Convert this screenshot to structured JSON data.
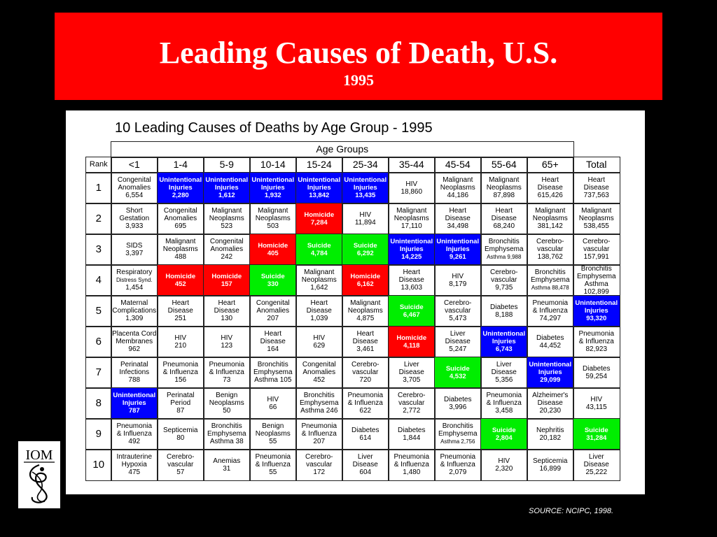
{
  "banner": {
    "title": "Leading Causes of Death, U.S.",
    "subtitle": "1995"
  },
  "table": {
    "title": "10 Leading Causes of Deaths by Age Group - 1995",
    "group_label": "Age Groups",
    "columns": [
      "Rank",
      "<1",
      "1-4",
      "5-9",
      "10-14",
      "15-24",
      "25-34",
      "35-44",
      "45-54",
      "55-64",
      "65+",
      "Total"
    ],
    "highlight_colors": {
      "blue": "#0000ff",
      "red": "#ff0000",
      "green": "#00ee00"
    },
    "rows": [
      {
        "rank": "1",
        "cells": [
          {
            "lines": [
              "Congenital",
              "Anomalies",
              "6,554"
            ]
          },
          {
            "lines": [
              "Unintentional",
              "Injuries",
              "2,280"
            ],
            "hl": "blue"
          },
          {
            "lines": [
              "Unintentional",
              "Injuries",
              "1,612"
            ],
            "hl": "blue"
          },
          {
            "lines": [
              "Unintentional",
              "Injuries",
              "1,932"
            ],
            "hl": "blue"
          },
          {
            "lines": [
              "Unintentional",
              "Injuries",
              "13,842"
            ],
            "hl": "blue"
          },
          {
            "lines": [
              "Unintentional",
              "Injuries",
              "13,435"
            ],
            "hl": "blue"
          },
          {
            "lines": [
              "HIV",
              "18,860"
            ]
          },
          {
            "lines": [
              "Malignant",
              "Neoplasms",
              "44,186"
            ]
          },
          {
            "lines": [
              "Malignant",
              "Neoplasms",
              "87,898"
            ]
          },
          {
            "lines": [
              "Heart",
              "Disease",
              "615,426"
            ]
          },
          {
            "lines": [
              "Heart",
              "Disease",
              "737,563"
            ]
          }
        ]
      },
      {
        "rank": "2",
        "cells": [
          {
            "lines": [
              "Short",
              "Gestation",
              "3,933"
            ]
          },
          {
            "lines": [
              "Congenital",
              "Anomalies",
              "695"
            ]
          },
          {
            "lines": [
              "Malignant",
              "Neoplasms",
              "523"
            ]
          },
          {
            "lines": [
              "Malignant",
              "Neoplasms",
              "503"
            ]
          },
          {
            "lines": [
              "Homicide",
              "7,284"
            ],
            "hl": "red"
          },
          {
            "lines": [
              "HIV",
              "11,894"
            ]
          },
          {
            "lines": [
              "Malignant",
              "Neoplasms",
              "17,110"
            ]
          },
          {
            "lines": [
              "Heart",
              "Disease",
              "34,498"
            ]
          },
          {
            "lines": [
              "Heart",
              "Disease",
              "68,240"
            ]
          },
          {
            "lines": [
              "Malignant",
              "Neoplasms",
              "381,142"
            ]
          },
          {
            "lines": [
              "Malignant",
              "Neoplasms",
              "538,455"
            ]
          }
        ]
      },
      {
        "rank": "3",
        "cells": [
          {
            "lines": [
              "SIDS",
              "3,397"
            ]
          },
          {
            "lines": [
              "Malignant",
              "Neoplasms",
              "488"
            ]
          },
          {
            "lines": [
              "Congenital",
              "Anomalies",
              "242"
            ]
          },
          {
            "lines": [
              "Homicide",
              "405"
            ],
            "hl": "red"
          },
          {
            "lines": [
              "Suicide",
              "4,784"
            ],
            "hl": "green"
          },
          {
            "lines": [
              "Suicide",
              "6,292"
            ],
            "hl": "green"
          },
          {
            "lines": [
              "Unintentional",
              "Injuries",
              "14,225"
            ],
            "hl": "blue"
          },
          {
            "lines": [
              "Unintentional",
              "Injuries",
              "9,261"
            ],
            "hl": "blue"
          },
          {
            "lines": [
              "Bronchitis",
              "Emphysema",
              "Asthma 9,988"
            ],
            "small_last": true
          },
          {
            "lines": [
              "Cerebro-",
              "vascular",
              "138,762"
            ]
          },
          {
            "lines": [
              "Cerebro-",
              "vascular",
              "157,991"
            ]
          }
        ]
      },
      {
        "rank": "4",
        "cells": [
          {
            "lines": [
              "Respiratory",
              "Distress Synd.",
              "1,454"
            ],
            "small_mid": true
          },
          {
            "lines": [
              "Homicide",
              "452"
            ],
            "hl": "red"
          },
          {
            "lines": [
              "Homicide",
              "157"
            ],
            "hl": "red"
          },
          {
            "lines": [
              "Suicide",
              "330"
            ],
            "hl": "green"
          },
          {
            "lines": [
              "Malignant",
              "Neoplasms",
              "1,642"
            ]
          },
          {
            "lines": [
              "Homicide",
              "6,162"
            ],
            "hl": "red"
          },
          {
            "lines": [
              "Heart",
              "Disease",
              "13,603"
            ]
          },
          {
            "lines": [
              "HIV",
              "8,179"
            ]
          },
          {
            "lines": [
              "Cerebro-",
              "vascular",
              "9,735"
            ]
          },
          {
            "lines": [
              "Bronchitis",
              "Emphysema",
              "Asthma 88,478"
            ],
            "small_last": true
          },
          {
            "lines": [
              "Bronchitis",
              "Emphysema",
              "Asthma",
              "102,899"
            ]
          }
        ]
      },
      {
        "rank": "5",
        "cells": [
          {
            "lines": [
              "Maternal",
              "Complications",
              "1,309"
            ]
          },
          {
            "lines": [
              "Heart",
              "Disease",
              "251"
            ]
          },
          {
            "lines": [
              "Heart",
              "Disease",
              "130"
            ]
          },
          {
            "lines": [
              "Congenital",
              "Anomalies",
              "207"
            ]
          },
          {
            "lines": [
              "Heart",
              "Disease",
              "1,039"
            ]
          },
          {
            "lines": [
              "Malignant",
              "Neoplasms",
              "4,875"
            ]
          },
          {
            "lines": [
              "Suicide",
              "6,467"
            ],
            "hl": "green"
          },
          {
            "lines": [
              "Cerebro-",
              "vascular",
              "5,473"
            ]
          },
          {
            "lines": [
              "Diabetes",
              "8,188"
            ]
          },
          {
            "lines": [
              "Pneumonia",
              "& Influenza",
              "74,297"
            ]
          },
          {
            "lines": [
              "Unintentional",
              "Injuries",
              "93,320"
            ],
            "hl": "blue"
          }
        ]
      },
      {
        "rank": "6",
        "cells": [
          {
            "lines": [
              "Placenta Cord",
              "Membranes",
              "962"
            ]
          },
          {
            "lines": [
              "HIV",
              "210"
            ]
          },
          {
            "lines": [
              "HIV",
              "123"
            ]
          },
          {
            "lines": [
              "Heart",
              "Disease",
              "164"
            ]
          },
          {
            "lines": [
              "HIV",
              "629"
            ]
          },
          {
            "lines": [
              "Heart",
              "Disease",
              "3,461"
            ]
          },
          {
            "lines": [
              "Homicide",
              "4,118"
            ],
            "hl": "red"
          },
          {
            "lines": [
              "Liver",
              "Disease",
              "5,247"
            ]
          },
          {
            "lines": [
              "Unintentional",
              "Injuries",
              "6,743"
            ],
            "hl": "blue"
          },
          {
            "lines": [
              "Diabetes",
              "44,452"
            ]
          },
          {
            "lines": [
              "Pneumonia",
              "& Influenza",
              "82,923"
            ]
          }
        ]
      },
      {
        "rank": "7",
        "cells": [
          {
            "lines": [
              "Perinatal",
              "Infections",
              "788"
            ]
          },
          {
            "lines": [
              "Pneumonia",
              "& Influenza",
              "156"
            ]
          },
          {
            "lines": [
              "Pneumonia",
              "& Influenza",
              "73"
            ]
          },
          {
            "lines": [
              "Bronchitis",
              "Emphysema",
              "Asthma 105"
            ]
          },
          {
            "lines": [
              "Congenital",
              "Anomalies",
              "452"
            ]
          },
          {
            "lines": [
              "Cerebro-",
              "vascular",
              "720"
            ]
          },
          {
            "lines": [
              "Liver",
              "Disease",
              "3,705"
            ]
          },
          {
            "lines": [
              "Suicide",
              "4,532"
            ],
            "hl": "green"
          },
          {
            "lines": [
              "Liver",
              "Disease",
              "5,356"
            ]
          },
          {
            "lines": [
              "Unintentional",
              "Injuries",
              "29,099"
            ],
            "hl": "blue"
          },
          {
            "lines": [
              "Diabetes",
              "59,254"
            ]
          }
        ]
      },
      {
        "rank": "8",
        "cells": [
          {
            "lines": [
              "Unintentional",
              "Injuries",
              "787"
            ],
            "hl": "blue"
          },
          {
            "lines": [
              "Perinatal",
              "Period",
              "87"
            ]
          },
          {
            "lines": [
              "Benign",
              "Neoplasms",
              "50"
            ]
          },
          {
            "lines": [
              "HIV",
              "66"
            ]
          },
          {
            "lines": [
              "Bronchitis",
              "Emphysema",
              "Asthma 246"
            ]
          },
          {
            "lines": [
              "Pneumonia",
              "& Influenza",
              "622"
            ]
          },
          {
            "lines": [
              "Cerebro-",
              "vascular",
              "2,772"
            ]
          },
          {
            "lines": [
              "Diabetes",
              "3,996"
            ]
          },
          {
            "lines": [
              "Pneumonia",
              "& Influenza",
              "3,458"
            ]
          },
          {
            "lines": [
              "Alzheimer's",
              "Disease",
              "20,230"
            ]
          },
          {
            "lines": [
              "HIV",
              "43,115"
            ]
          }
        ]
      },
      {
        "rank": "9",
        "cells": [
          {
            "lines": [
              "Pneumonia",
              "& Influenza",
              "492"
            ]
          },
          {
            "lines": [
              "Septicemia",
              "80"
            ]
          },
          {
            "lines": [
              "Bronchitis",
              "Emphysema",
              "Asthma 38"
            ]
          },
          {
            "lines": [
              "Benign",
              "Neoplasms",
              "55"
            ]
          },
          {
            "lines": [
              "Pneumonia",
              "& Influenza",
              "207"
            ]
          },
          {
            "lines": [
              "Diabetes",
              "614"
            ]
          },
          {
            "lines": [
              "Diabetes",
              "1,844"
            ]
          },
          {
            "lines": [
              "Bronchitis",
              "Emphysema",
              "Asthma 2,756"
            ],
            "small_last": true
          },
          {
            "lines": [
              "Suicide",
              "2,804"
            ],
            "hl": "green"
          },
          {
            "lines": [
              "Nephritis",
              "20,182"
            ]
          },
          {
            "lines": [
              "Suicide",
              "31,284"
            ],
            "hl": "green"
          }
        ]
      },
      {
        "rank": "10",
        "cells": [
          {
            "lines": [
              "Intrauterine",
              "Hypoxia",
              "475"
            ]
          },
          {
            "lines": [
              "Cerebro-",
              "vascular",
              "57"
            ]
          },
          {
            "lines": [
              "Anemias",
              "31"
            ]
          },
          {
            "lines": [
              "Pneumonia",
              "& Influenza",
              "55"
            ]
          },
          {
            "lines": [
              "Cerebro-",
              "vascular",
              "172"
            ]
          },
          {
            "lines": [
              "Liver",
              "Disease",
              "604"
            ]
          },
          {
            "lines": [
              "Pneumonia",
              "& Influenza",
              "1,480"
            ]
          },
          {
            "lines": [
              "Pneumonia",
              "& Influenza",
              "2,079"
            ]
          },
          {
            "lines": [
              "HIV",
              "2,320"
            ]
          },
          {
            "lines": [
              "Septicemia",
              "16,899"
            ]
          },
          {
            "lines": [
              "Liver",
              "Disease",
              "25,222"
            ]
          }
        ]
      }
    ]
  },
  "logo": {
    "text": "IOM"
  },
  "source": "SOURCE: NCIPC, 1998."
}
